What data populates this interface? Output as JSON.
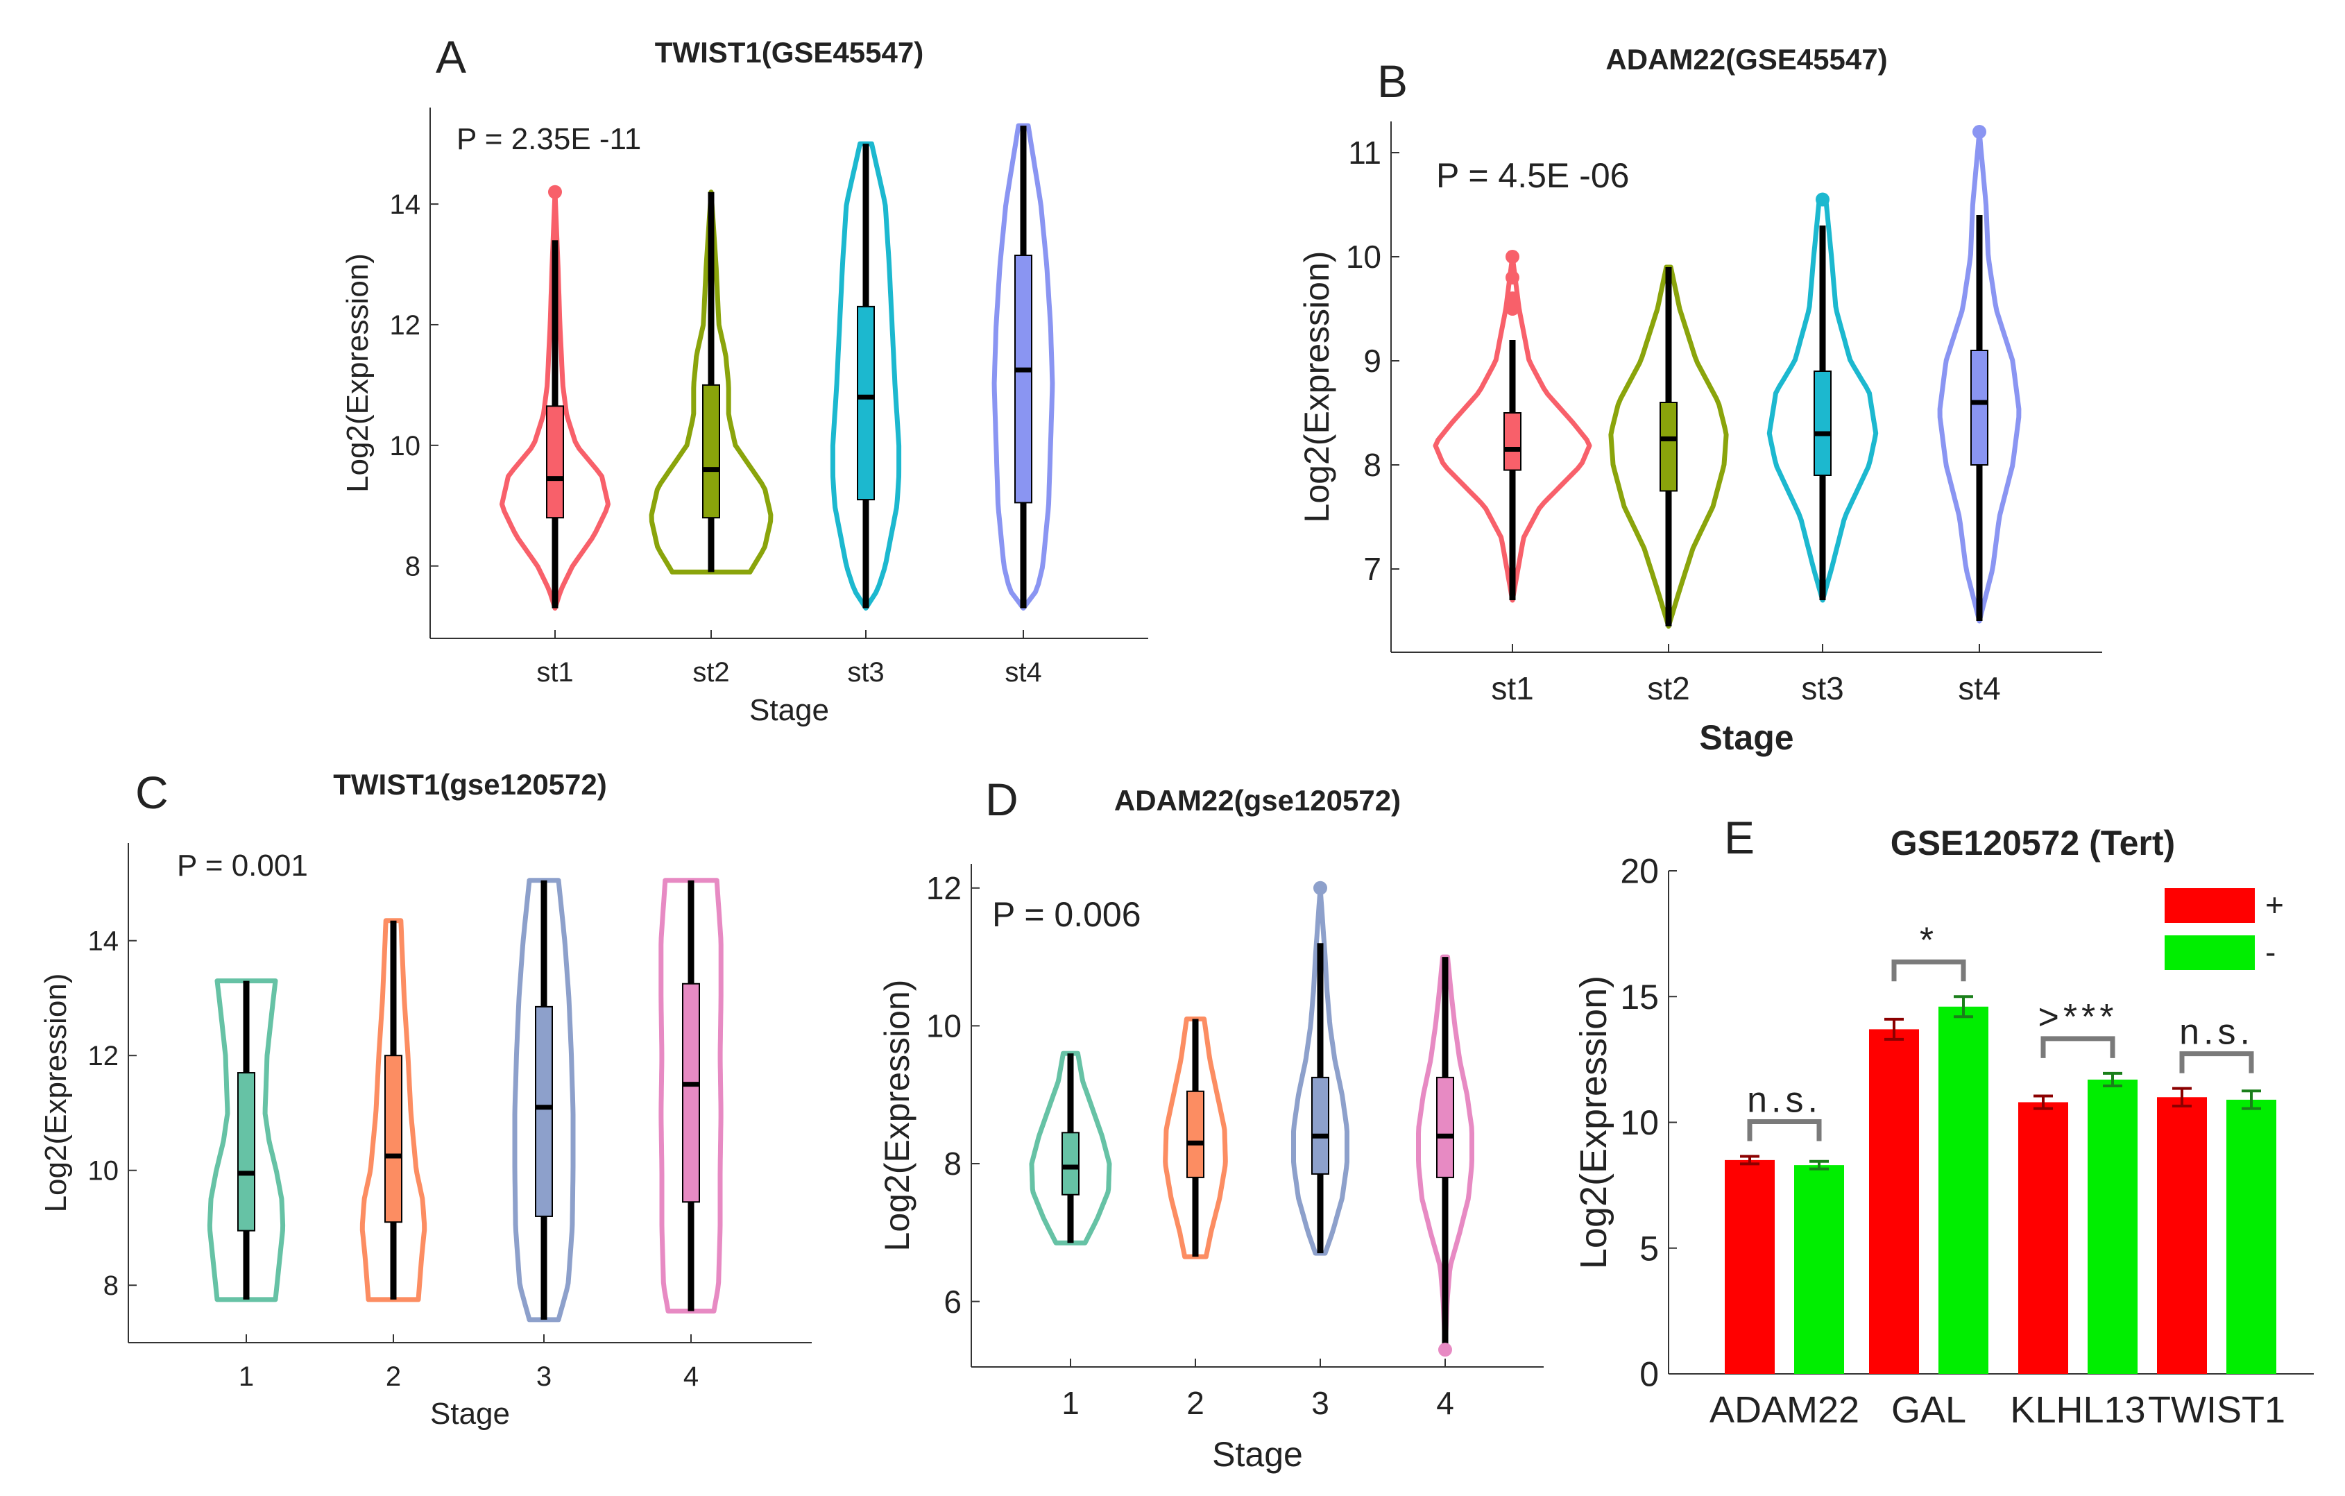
{
  "chart_data": [
    {
      "panel_letter": "A",
      "type": "violin",
      "title": "TWIST1(GSE45547)",
      "annotation": "P = 2.35E -11",
      "xlabel": "Stage",
      "ylabel": "Log2(Expression)",
      "categories": [
        "st1",
        "st2",
        "st3",
        "st4"
      ],
      "ylim": [
        6.8,
        15.6
      ],
      "yticks": [
        "8",
        "10",
        "12",
        "14"
      ],
      "colors": [
        "#f8606a",
        "#8aa40b",
        "#1cb8cf",
        "#8a95f2"
      ],
      "series": [
        {
          "name": "st1",
          "min": 7.3,
          "q1": 8.8,
          "median": 9.45,
          "q3": 10.65,
          "max": 14.2,
          "whisker_high": 13.4,
          "outliers": [
            14.2
          ],
          "profile": [
            [
              7.3,
              0.0
            ],
            [
              7.6,
              0.06
            ],
            [
              8.0,
              0.18
            ],
            [
              8.5,
              0.4
            ],
            [
              9.0,
              0.55
            ],
            [
              9.5,
              0.48
            ],
            [
              10.0,
              0.22
            ],
            [
              10.5,
              0.12
            ],
            [
              11.0,
              0.08
            ],
            [
              12.0,
              0.05
            ],
            [
              13.0,
              0.03
            ],
            [
              14.2,
              0.0
            ]
          ]
        },
        {
          "name": "st2",
          "min": 7.9,
          "q1": 8.8,
          "median": 9.6,
          "q3": 11.0,
          "max": 14.2,
          "whisker_high": 14.2,
          "outliers": [],
          "profile": [
            [
              7.9,
              0.4
            ],
            [
              8.3,
              0.55
            ],
            [
              8.8,
              0.62
            ],
            [
              9.3,
              0.55
            ],
            [
              10.0,
              0.25
            ],
            [
              10.5,
              0.18
            ],
            [
              11.0,
              0.18
            ],
            [
              11.5,
              0.15
            ],
            [
              12.0,
              0.08
            ],
            [
              13.0,
              0.05
            ],
            [
              14.2,
              0.0
            ]
          ]
        },
        {
          "name": "st3",
          "min": 7.3,
          "q1": 9.1,
          "median": 10.8,
          "q3": 12.3,
          "max": 15.0,
          "whisker_high": 15.0,
          "outliers": [],
          "profile": [
            [
              7.3,
              0.0
            ],
            [
              7.6,
              0.12
            ],
            [
              8.0,
              0.2
            ],
            [
              8.5,
              0.26
            ],
            [
              9.0,
              0.32
            ],
            [
              9.5,
              0.34
            ],
            [
              10.0,
              0.34
            ],
            [
              10.5,
              0.32
            ],
            [
              11.0,
              0.3
            ],
            [
              12.0,
              0.27
            ],
            [
              13.0,
              0.24
            ],
            [
              14.0,
              0.2
            ],
            [
              15.0,
              0.06
            ]
          ]
        },
        {
          "name": "st4",
          "min": 7.3,
          "q1": 9.05,
          "median": 11.25,
          "q3": 13.15,
          "max": 15.3,
          "whisker_high": 15.3,
          "outliers": [],
          "profile": [
            [
              7.3,
              0.0
            ],
            [
              7.6,
              0.14
            ],
            [
              8.0,
              0.2
            ],
            [
              9.0,
              0.26
            ],
            [
              10.0,
              0.28
            ],
            [
              11.0,
              0.3
            ],
            [
              12.0,
              0.28
            ],
            [
              13.0,
              0.24
            ],
            [
              14.0,
              0.18
            ],
            [
              15.3,
              0.05
            ]
          ]
        }
      ]
    },
    {
      "panel_letter": "B",
      "type": "violin",
      "title": "ADAM22(GSE45547)",
      "annotation": "P = 4.5E -06",
      "xlabel": "Stage",
      "ylabel": "Log2(Expression)",
      "categories": [
        "st1",
        "st2",
        "st3",
        "st4"
      ],
      "ylim": [
        6.2,
        11.3
      ],
      "yticks": [
        "7",
        "8",
        "9",
        "10",
        "11"
      ],
      "colors": [
        "#f8606a",
        "#8aa40b",
        "#1cb8cf",
        "#8a95f2"
      ],
      "series": [
        {
          "name": "st1",
          "min": 6.7,
          "q1": 7.95,
          "median": 8.15,
          "q3": 8.5,
          "max": 10.0,
          "whisker_high": 9.2,
          "outliers": [
            9.5,
            9.6,
            9.8,
            10.0
          ],
          "profile": [
            [
              6.7,
              0.0
            ],
            [
              7.0,
              0.05
            ],
            [
              7.3,
              0.1
            ],
            [
              7.6,
              0.25
            ],
            [
              8.0,
              0.62
            ],
            [
              8.2,
              0.7
            ],
            [
              8.4,
              0.55
            ],
            [
              8.7,
              0.3
            ],
            [
              9.0,
              0.15
            ],
            [
              9.5,
              0.06
            ],
            [
              10.0,
              0.0
            ]
          ]
        },
        {
          "name": "st2",
          "min": 6.45,
          "q1": 7.75,
          "median": 8.25,
          "q3": 8.6,
          "max": 9.9,
          "whisker_high": 9.9,
          "outliers": [],
          "profile": [
            [
              6.45,
              0.0
            ],
            [
              6.8,
              0.1
            ],
            [
              7.2,
              0.22
            ],
            [
              7.6,
              0.4
            ],
            [
              8.0,
              0.5
            ],
            [
              8.3,
              0.52
            ],
            [
              8.6,
              0.45
            ],
            [
              9.0,
              0.25
            ],
            [
              9.5,
              0.1
            ],
            [
              9.9,
              0.02
            ]
          ]
        },
        {
          "name": "st3",
          "min": 6.7,
          "q1": 7.9,
          "median": 8.3,
          "q3": 8.9,
          "max": 10.55,
          "whisker_high": 10.3,
          "outliers": [
            10.55
          ],
          "profile": [
            [
              6.7,
              0.0
            ],
            [
              7.0,
              0.08
            ],
            [
              7.5,
              0.2
            ],
            [
              8.0,
              0.42
            ],
            [
              8.3,
              0.48
            ],
            [
              8.7,
              0.42
            ],
            [
              9.0,
              0.25
            ],
            [
              9.5,
              0.12
            ],
            [
              10.0,
              0.08
            ],
            [
              10.55,
              0.03
            ]
          ]
        },
        {
          "name": "st4",
          "min": 6.5,
          "q1": 8.0,
          "median": 8.6,
          "q3": 9.1,
          "max": 11.2,
          "whisker_high": 10.4,
          "outliers": [
            11.2
          ],
          "profile": [
            [
              6.5,
              0.0
            ],
            [
              7.0,
              0.12
            ],
            [
              7.5,
              0.18
            ],
            [
              8.0,
              0.3
            ],
            [
              8.5,
              0.36
            ],
            [
              9.0,
              0.3
            ],
            [
              9.5,
              0.15
            ],
            [
              10.0,
              0.08
            ],
            [
              10.5,
              0.06
            ],
            [
              11.2,
              0.0
            ]
          ]
        }
      ]
    },
    {
      "panel_letter": "C",
      "type": "violin",
      "title": "TWIST1(gse120572)",
      "annotation": "P = 0.001",
      "xlabel": "Stage",
      "ylabel": "Log2(Expression)",
      "categories": [
        "1",
        "2",
        "3",
        "4"
      ],
      "ylim": [
        7.0,
        15.7
      ],
      "yticks": [
        "8",
        "10",
        "12",
        "14"
      ],
      "colors": [
        "#66c2a5",
        "#fc8d62",
        "#8da0cb",
        "#e78ac3"
      ],
      "series": [
        {
          "name": "1",
          "min": 7.75,
          "q1": 8.95,
          "median": 9.95,
          "q3": 11.7,
          "max": 13.3,
          "whisker_high": 13.3,
          "outliers": [],
          "profile": [
            [
              7.75,
              0.7
            ],
            [
              8.3,
              0.78
            ],
            [
              9.0,
              0.88
            ],
            [
              9.5,
              0.85
            ],
            [
              10.0,
              0.72
            ],
            [
              10.5,
              0.55
            ],
            [
              11.0,
              0.45
            ],
            [
              12.0,
              0.5
            ],
            [
              12.8,
              0.62
            ],
            [
              13.3,
              0.7
            ]
          ]
        },
        {
          "name": "2",
          "min": 7.75,
          "q1": 9.1,
          "median": 10.25,
          "q3": 12.0,
          "max": 14.35,
          "whisker_high": 14.35,
          "outliers": [],
          "profile": [
            [
              7.75,
              0.6
            ],
            [
              8.5,
              0.68
            ],
            [
              9.0,
              0.75
            ],
            [
              9.5,
              0.7
            ],
            [
              10.0,
              0.55
            ],
            [
              11.0,
              0.42
            ],
            [
              12.0,
              0.35
            ],
            [
              13.0,
              0.26
            ],
            [
              14.0,
              0.2
            ],
            [
              14.35,
              0.18
            ]
          ]
        },
        {
          "name": "3",
          "min": 7.4,
          "q1": 9.2,
          "median": 11.1,
          "q3": 12.85,
          "max": 15.05,
          "whisker_high": 15.05,
          "outliers": [],
          "profile": [
            [
              7.4,
              0.35
            ],
            [
              8.0,
              0.58
            ],
            [
              9.0,
              0.68
            ],
            [
              10.0,
              0.7
            ],
            [
              11.0,
              0.7
            ],
            [
              12.0,
              0.66
            ],
            [
              13.0,
              0.6
            ],
            [
              14.0,
              0.5
            ],
            [
              15.05,
              0.35
            ]
          ]
        },
        {
          "name": "4",
          "min": 7.55,
          "q1": 9.45,
          "median": 11.5,
          "q3": 13.25,
          "max": 15.05,
          "whisker_high": 15.05,
          "outliers": [],
          "profile": [
            [
              7.55,
              0.55
            ],
            [
              8.0,
              0.66
            ],
            [
              9.0,
              0.7
            ],
            [
              10.0,
              0.7
            ],
            [
              11.0,
              0.72
            ],
            [
              12.0,
              0.7
            ],
            [
              13.0,
              0.72
            ],
            [
              14.0,
              0.72
            ],
            [
              15.05,
              0.62
            ]
          ]
        }
      ]
    },
    {
      "panel_letter": "D",
      "type": "violin",
      "title": "ADAM22(gse120572)",
      "annotation": "P = 0.006",
      "xlabel": "Stage",
      "ylabel": "Log2(Expression)",
      "categories": [
        "1",
        "2",
        "3",
        "4"
      ],
      "ylim": [
        5.05,
        12.35
      ],
      "yticks": [
        "6",
        "8",
        "10",
        "12"
      ],
      "colors": [
        "#66c2a5",
        "#fc8d62",
        "#8da0cb",
        "#e78ac3"
      ],
      "series": [
        {
          "name": "1",
          "min": 6.85,
          "q1": 7.55,
          "median": 7.95,
          "q3": 8.45,
          "max": 9.6,
          "whisker_high": 9.6,
          "outliers": [],
          "profile": [
            [
              6.85,
              0.3
            ],
            [
              7.2,
              0.55
            ],
            [
              7.6,
              0.78
            ],
            [
              8.0,
              0.8
            ],
            [
              8.4,
              0.65
            ],
            [
              8.8,
              0.45
            ],
            [
              9.2,
              0.25
            ],
            [
              9.6,
              0.15
            ]
          ]
        },
        {
          "name": "2",
          "min": 6.65,
          "q1": 7.8,
          "median": 8.3,
          "q3": 9.05,
          "max": 10.1,
          "whisker_high": 10.1,
          "outliers": [],
          "profile": [
            [
              6.65,
              0.22
            ],
            [
              7.0,
              0.32
            ],
            [
              7.5,
              0.5
            ],
            [
              8.0,
              0.62
            ],
            [
              8.5,
              0.6
            ],
            [
              9.0,
              0.45
            ],
            [
              9.5,
              0.3
            ],
            [
              10.1,
              0.18
            ]
          ]
        },
        {
          "name": "3",
          "min": 6.7,
          "q1": 7.85,
          "median": 8.4,
          "q3": 9.25,
          "max": 12.0,
          "whisker_high": 11.2,
          "outliers": [
            12.0
          ],
          "profile": [
            [
              6.7,
              0.1
            ],
            [
              7.0,
              0.25
            ],
            [
              7.5,
              0.45
            ],
            [
              8.0,
              0.55
            ],
            [
              8.5,
              0.55
            ],
            [
              9.0,
              0.45
            ],
            [
              9.5,
              0.3
            ],
            [
              10.0,
              0.2
            ],
            [
              10.5,
              0.14
            ],
            [
              11.0,
              0.1
            ],
            [
              12.0,
              0.0
            ]
          ]
        },
        {
          "name": "4",
          "min": 5.3,
          "q1": 7.8,
          "median": 8.4,
          "q3": 9.25,
          "max": 11.0,
          "whisker_high": 11.0,
          "outliers": [
            5.3
          ],
          "profile": [
            [
              5.3,
              0.0
            ],
            [
              6.0,
              0.04
            ],
            [
              6.5,
              0.1
            ],
            [
              7.0,
              0.3
            ],
            [
              7.5,
              0.48
            ],
            [
              8.0,
              0.55
            ],
            [
              8.5,
              0.55
            ],
            [
              9.0,
              0.45
            ],
            [
              9.5,
              0.3
            ],
            [
              10.0,
              0.2
            ],
            [
              10.5,
              0.12
            ],
            [
              11.0,
              0.05
            ]
          ]
        }
      ]
    },
    {
      "panel_letter": "E",
      "type": "bar",
      "title": "GSE120572 (Tert)",
      "xlabel": "",
      "ylabel": "Log2(Expression)",
      "categories": [
        "ADAM22",
        "GAL",
        "KLHL13",
        "TWIST1"
      ],
      "ylim": [
        0,
        20
      ],
      "yticks": [
        "0",
        "5",
        "10",
        "15",
        "20"
      ],
      "legend_position": "top-right",
      "series": [
        {
          "name": "+",
          "color": "#ff0000",
          "error_color": "#8b0000",
          "values": [
            8.5,
            13.7,
            10.8,
            11.0
          ],
          "errors": [
            0.15,
            0.4,
            0.25,
            0.35
          ]
        },
        {
          "name": "-",
          "color": "#00ee00",
          "error_color": "#1a7f1a",
          "values": [
            8.3,
            14.6,
            11.7,
            10.9
          ],
          "errors": [
            0.15,
            0.4,
            0.25,
            0.35
          ]
        }
      ],
      "significance": [
        "n.s.",
        "*",
        ">***",
        "n.s."
      ]
    }
  ]
}
